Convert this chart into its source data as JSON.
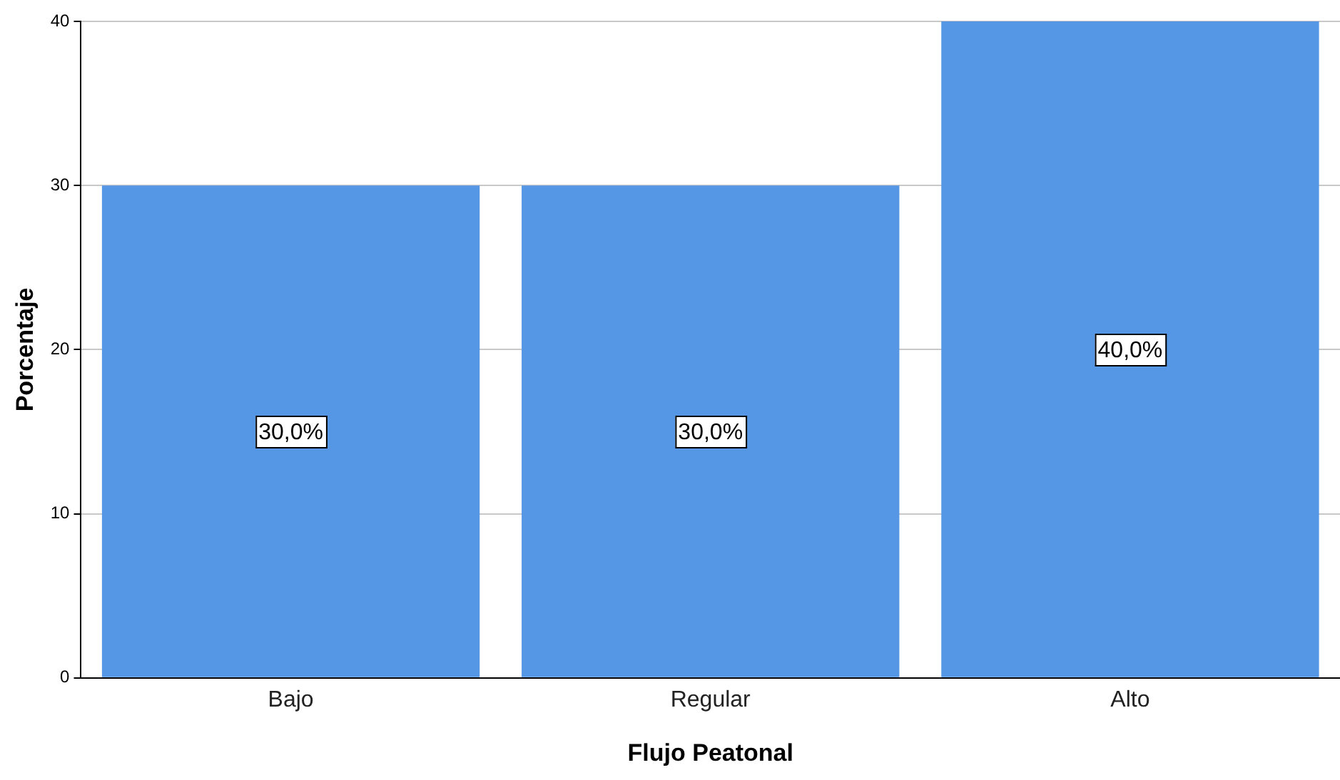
{
  "chart_data": {
    "type": "bar",
    "xlabel": "Flujo Peatonal",
    "ylabel": "Porcentaje",
    "categories": [
      "Bajo",
      "Regular",
      "Alto"
    ],
    "values": [
      30,
      30,
      40
    ],
    "color": "#5596e5",
    "value_labels": [
      "30,0%",
      "30,0%",
      "40,0%"
    ],
    "ylim": [
      0,
      40
    ],
    "yticks": [
      0,
      10,
      20,
      30,
      40
    ],
    "grid": "y",
    "legend": false
  }
}
